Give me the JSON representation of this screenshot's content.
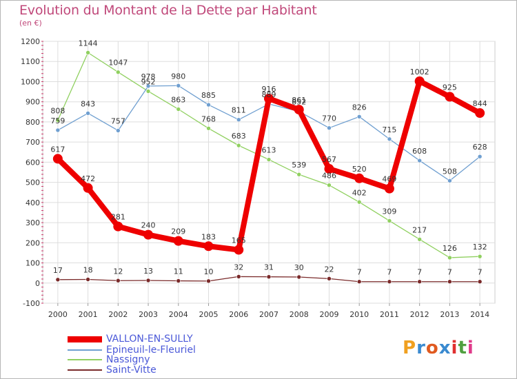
{
  "chart_data": {
    "type": "line",
    "title": "Evolution du Montant de la Dette par Habitant",
    "subtitle": "(en €)",
    "x": [
      "2000",
      "2001",
      "2002",
      "2003",
      "2004",
      "2005",
      "2006",
      "2007",
      "2008",
      "2009",
      "2010",
      "2011",
      "2012",
      "2013",
      "2014"
    ],
    "ylim": [
      -100,
      1200
    ],
    "yticks": [
      -100,
      0,
      100,
      200,
      300,
      400,
      500,
      600,
      700,
      800,
      900,
      1000,
      1100,
      1200
    ],
    "grid": true,
    "legend_position": "bottom-left",
    "series": [
      {
        "name": "VALLON-EN-SULLY",
        "color": "#ee0000",
        "values": [
          617,
          472,
          281,
          240,
          209,
          183,
          165,
          916,
          861,
          567,
          520,
          469,
          1002,
          925,
          844
        ]
      },
      {
        "name": "Epineuil-le-Fleuriel",
        "color": "#6f9fd0",
        "values": [
          759,
          843,
          757,
          978,
          980,
          885,
          811,
          889,
          852,
          770,
          826,
          715,
          608,
          508,
          628
        ]
      },
      {
        "name": "Nassigny",
        "color": "#90d060",
        "values": [
          808,
          1144,
          1047,
          952,
          863,
          768,
          683,
          613,
          539,
          486,
          402,
          309,
          217,
          126,
          132
        ]
      },
      {
        "name": "Saint-Vitte",
        "color": "#7a2a2a",
        "values": [
          17,
          18,
          12,
          13,
          11,
          10,
          32,
          31,
          30,
          22,
          7,
          7,
          7,
          7,
          7
        ]
      }
    ]
  },
  "logo": {
    "text": "Proxiti",
    "letters": [
      "P",
      "r",
      "o",
      "x",
      "i",
      "t",
      "i"
    ],
    "colors": [
      "#f0a020",
      "#3a8ad0",
      "#e05a20",
      "#3a8ad0",
      "#e03030",
      "#50a040",
      "#e03a8a"
    ]
  }
}
